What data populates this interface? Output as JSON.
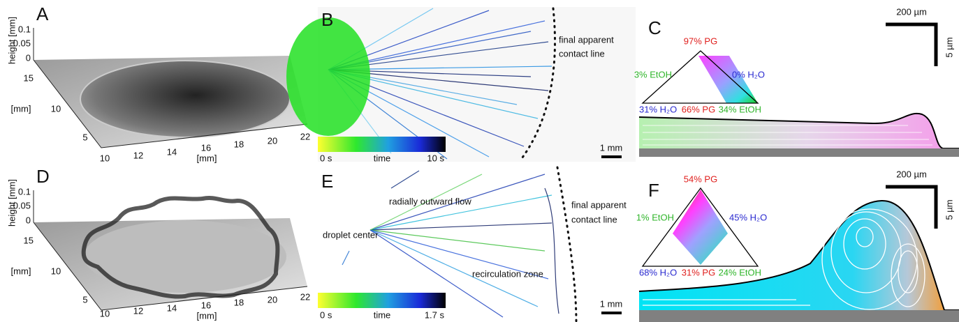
{
  "panel_a": {
    "label": "A",
    "z_title": "height [mm]",
    "z_ticks": [
      0.1,
      0.05,
      0
    ],
    "y_title": "[mm]",
    "y_ticks": [
      15,
      10,
      5
    ],
    "x_title": "[mm]",
    "x_ticks": [
      10,
      12,
      14,
      16,
      18,
      20,
      22
    ]
  },
  "panel_b": {
    "label": "B",
    "annotation": [
      "final apparent",
      "contact line"
    ],
    "colorbar": {
      "start": "0 s",
      "label": "time",
      "end": "10 s"
    },
    "scale_bar": "1 mm"
  },
  "panel_c": {
    "label": "C",
    "scale_x": "200 µm",
    "scale_y": "5 µm",
    "ternary": {
      "top": "97% PG",
      "left": "3% EtOH",
      "right": "0% H₂O",
      "bottom_left": "31% H₂O",
      "bottom_center": "66% PG",
      "bottom_right": "34% EtOH"
    }
  },
  "panel_d": {
    "label": "D",
    "z_title": "height [mm]",
    "z_ticks": [
      0.1,
      0.05,
      0
    ],
    "y_title": "[mm]",
    "y_ticks": [
      15,
      10,
      5
    ],
    "x_title": "[mm]",
    "x_ticks": [
      10,
      12,
      14,
      16,
      18,
      20,
      22
    ]
  },
  "panel_e": {
    "label": "E",
    "annotations": [
      "radially outward flow",
      "droplet center",
      "recirculation zone"
    ],
    "annotation": [
      "final apparent",
      "contact line"
    ],
    "colorbar": {
      "start": "0 s",
      "label": "time",
      "end": "1.7 s"
    },
    "scale_bar": "1 mm"
  },
  "panel_f": {
    "label": "F",
    "scale_x": "200 µm",
    "scale_y": "5 µm",
    "ternary": {
      "top": "54% PG",
      "left": "1% EtOH",
      "right": "45% H₂O",
      "bottom_left": "68% H₂O",
      "bottom_center": "31% PG",
      "bottom_right": "24% EtOH"
    }
  }
}
